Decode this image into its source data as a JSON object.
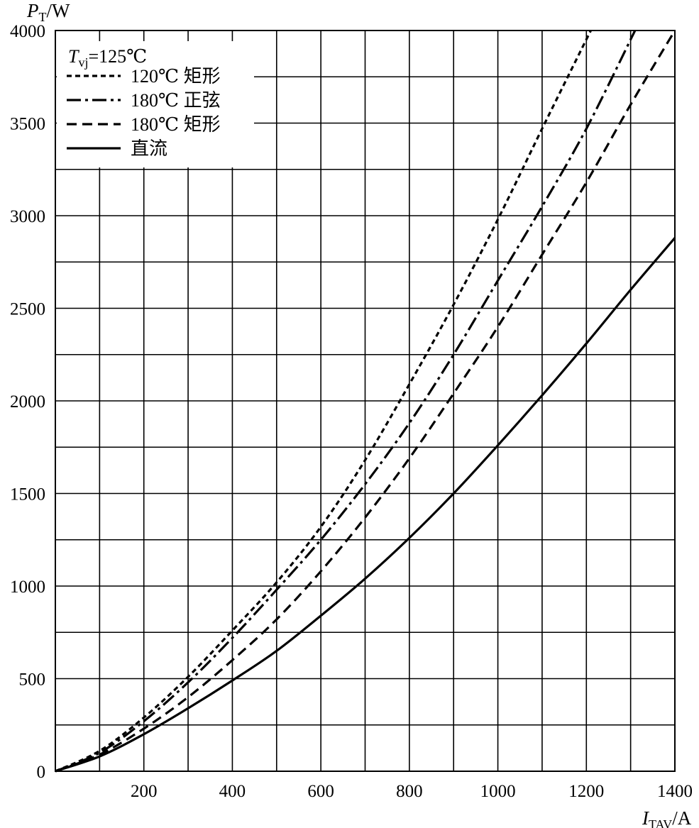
{
  "chart_data": {
    "type": "line",
    "title": "",
    "xlabel": {
      "symbol": "I",
      "subscript": "TAV",
      "unit": "/A"
    },
    "ylabel": {
      "symbol": "P",
      "subscript": "T",
      "unit": "/W"
    },
    "xlim": [
      0,
      1400
    ],
    "ylim": [
      0,
      4000
    ],
    "x_ticks": [
      200,
      400,
      600,
      800,
      1000,
      1200,
      1400
    ],
    "y_ticks": [
      0,
      500,
      1000,
      1500,
      2000,
      2500,
      3000,
      3500,
      4000
    ],
    "x_grid_step": 100,
    "y_grid_step": 250,
    "grid": true,
    "legend_position": "top-left",
    "legend_title": {
      "symbol": "T",
      "subscript": "vj",
      "rest": "=125℃"
    },
    "series": [
      {
        "name": "120℃ 矩形",
        "style": "dotted-dash",
        "points": [
          [
            0,
            0
          ],
          [
            100,
            110
          ],
          [
            200,
            290
          ],
          [
            300,
            510
          ],
          [
            400,
            760
          ],
          [
            500,
            1020
          ],
          [
            600,
            1320
          ],
          [
            700,
            1680
          ],
          [
            800,
            2090
          ],
          [
            900,
            2520
          ],
          [
            1000,
            2980
          ],
          [
            1100,
            3470
          ],
          [
            1210,
            4000
          ]
        ]
      },
      {
        "name": "180℃ 正弦",
        "style": "dash-dot",
        "points": [
          [
            0,
            0
          ],
          [
            100,
            100
          ],
          [
            200,
            270
          ],
          [
            300,
            480
          ],
          [
            400,
            720
          ],
          [
            500,
            980
          ],
          [
            600,
            1250
          ],
          [
            700,
            1550
          ],
          [
            800,
            1880
          ],
          [
            900,
            2250
          ],
          [
            1000,
            2650
          ],
          [
            1100,
            3050
          ],
          [
            1200,
            3470
          ],
          [
            1310,
            4000
          ]
        ]
      },
      {
        "name": "180℃ 矩形",
        "style": "dashed",
        "points": [
          [
            0,
            0
          ],
          [
            100,
            90
          ],
          [
            200,
            230
          ],
          [
            300,
            400
          ],
          [
            400,
            600
          ],
          [
            500,
            820
          ],
          [
            600,
            1080
          ],
          [
            700,
            1370
          ],
          [
            800,
            1690
          ],
          [
            900,
            2040
          ],
          [
            1000,
            2400
          ],
          [
            1100,
            2790
          ],
          [
            1200,
            3180
          ],
          [
            1300,
            3600
          ],
          [
            1400,
            4000
          ]
        ]
      },
      {
        "name": "直流",
        "style": "solid",
        "points": [
          [
            0,
            0
          ],
          [
            100,
            80
          ],
          [
            200,
            200
          ],
          [
            300,
            340
          ],
          [
            400,
            490
          ],
          [
            500,
            650
          ],
          [
            600,
            840
          ],
          [
            700,
            1040
          ],
          [
            800,
            1260
          ],
          [
            900,
            1500
          ],
          [
            1000,
            1760
          ],
          [
            1100,
            2030
          ],
          [
            1200,
            2310
          ],
          [
            1300,
            2600
          ],
          [
            1400,
            2880
          ]
        ]
      }
    ]
  }
}
